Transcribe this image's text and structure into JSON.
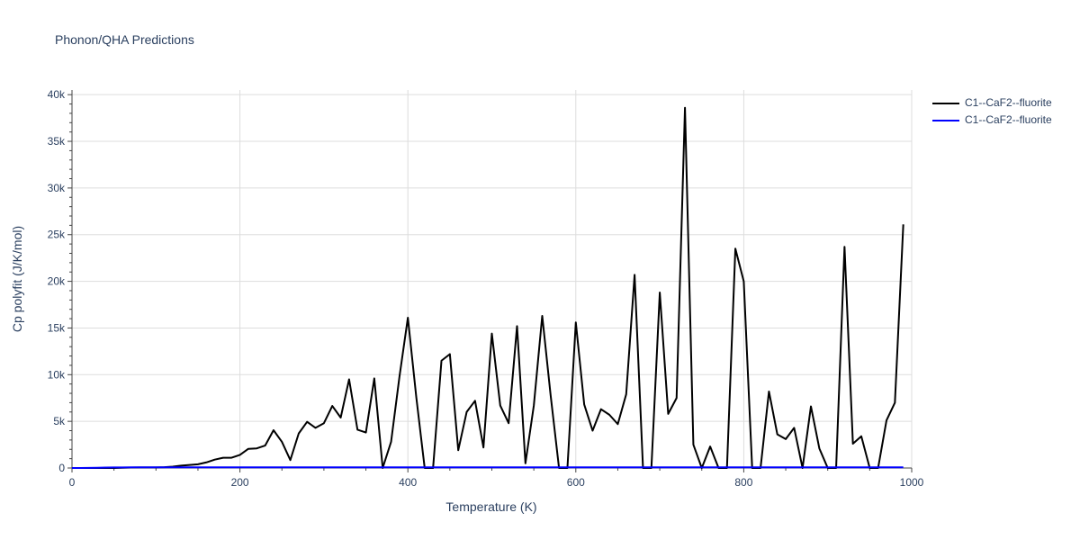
{
  "chart_data": {
    "type": "line",
    "title": "Phonon/QHA Predictions",
    "xlabel": "Temperature (K)",
    "ylabel": "Cp polyfit (J/K/mol)",
    "xlim": [
      0,
      1000
    ],
    "ylim": [
      0,
      40500
    ],
    "x_ticks": [
      0,
      200,
      400,
      600,
      800,
      1000
    ],
    "x_tick_labels": [
      "0",
      "200",
      "400",
      "600",
      "800",
      "1000"
    ],
    "y_ticks": [
      0,
      5000,
      10000,
      15000,
      20000,
      25000,
      30000,
      35000,
      40000
    ],
    "y_tick_labels": [
      "0",
      "5k",
      "10k",
      "15k",
      "20k",
      "25k",
      "30k",
      "35k",
      "40k"
    ],
    "grid": true,
    "legend_position": "top-right",
    "series": [
      {
        "name": "C1--CaF2--fluorite",
        "color": "#000000",
        "x": [
          0,
          10,
          20,
          30,
          40,
          50,
          60,
          70,
          80,
          90,
          100,
          110,
          120,
          130,
          140,
          150,
          160,
          170,
          180,
          190,
          200,
          210,
          220,
          230,
          240,
          250,
          260,
          270,
          280,
          290,
          300,
          310,
          320,
          330,
          340,
          350,
          360,
          370,
          380,
          390,
          400,
          410,
          420,
          430,
          440,
          450,
          460,
          470,
          480,
          490,
          500,
          510,
          520,
          530,
          540,
          550,
          560,
          570,
          580,
          590,
          600,
          610,
          620,
          630,
          640,
          650,
          660,
          670,
          680,
          690,
          700,
          710,
          720,
          730,
          740,
          750,
          760,
          770,
          780,
          790,
          800,
          810,
          820,
          830,
          840,
          850,
          860,
          870,
          880,
          890,
          900,
          910,
          920,
          930,
          940,
          950,
          960,
          970,
          980,
          990
        ],
        "y": [
          0,
          0,
          0,
          0,
          0,
          0,
          30,
          50,
          60,
          60,
          60,
          80,
          150,
          250,
          320,
          400,
          600,
          900,
          1100,
          1100,
          1400,
          2050,
          2100,
          2400,
          4050,
          2800,
          850,
          3700,
          4950,
          4300,
          4800,
          6650,
          5400,
          9500,
          4100,
          3800,
          9600,
          0,
          2800,
          9800,
          16100,
          7600,
          0,
          0,
          11500,
          12200,
          1900,
          6000,
          7200,
          2200,
          14400,
          6700,
          4800,
          15200,
          500,
          6700,
          16300,
          7800,
          0,
          0,
          15600,
          6800,
          4000,
          6300,
          5700,
          4700,
          7900,
          20700,
          0,
          0,
          18800,
          5800,
          7500,
          38600,
          2500,
          0,
          2300,
          0,
          0,
          23500,
          20000,
          0,
          0,
          8200,
          3600,
          3100,
          4300,
          0,
          6600,
          2100,
          0,
          0,
          23700,
          2600,
          3400,
          0,
          0,
          5100,
          7000,
          26100
        ]
      },
      {
        "name": "C1--CaF2--fluorite",
        "color": "#0000ff",
        "x": [
          0,
          10,
          20,
          30,
          40,
          50,
          60,
          70,
          80,
          90,
          100,
          110,
          120,
          130,
          140,
          150,
          160,
          170,
          180,
          190,
          200,
          210,
          220,
          230,
          240,
          250,
          260,
          270,
          280,
          290,
          300,
          310,
          320,
          330,
          340,
          350,
          360,
          370,
          380,
          390,
          400,
          410,
          420,
          430,
          440,
          450,
          460,
          470,
          480,
          490,
          500,
          510,
          520,
          530,
          540,
          550,
          560,
          570,
          580,
          590,
          600,
          610,
          620,
          630,
          640,
          650,
          660,
          670,
          680,
          690,
          700,
          710,
          720,
          730,
          740,
          750,
          760,
          770,
          780,
          790,
          800,
          810,
          820,
          830,
          840,
          850,
          860,
          870,
          880,
          890,
          900,
          910,
          920,
          930,
          940,
          950,
          960,
          970,
          980,
          990
        ],
        "y": [
          0,
          5,
          15,
          30,
          45,
          55,
          62,
          67,
          70,
          72,
          73,
          74,
          74,
          75,
          75,
          75,
          75,
          76,
          76,
          76,
          76,
          76,
          76,
          76,
          76,
          76,
          76,
          76,
          76,
          76,
          76,
          76,
          76,
          76,
          76,
          76,
          76,
          76,
          76,
          76,
          76,
          76,
          76,
          76,
          76,
          76,
          76,
          76,
          76,
          76,
          76,
          76,
          76,
          76,
          76,
          76,
          76,
          76,
          76,
          76,
          76,
          76,
          76,
          76,
          76,
          76,
          76,
          76,
          76,
          76,
          76,
          76,
          76,
          76,
          76,
          76,
          76,
          76,
          76,
          76,
          76,
          76,
          76,
          76,
          76,
          76,
          76,
          76,
          76,
          76,
          76,
          76,
          76,
          76,
          76,
          76,
          76,
          76,
          76,
          76
        ]
      }
    ]
  }
}
